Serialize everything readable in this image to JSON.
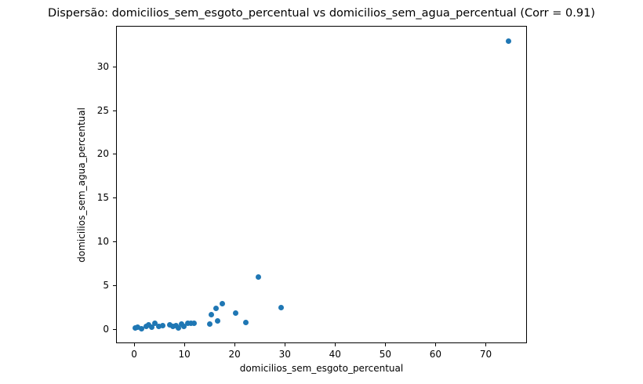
{
  "chart_data": {
    "type": "scatter",
    "title": "Dispersão: domicilios_sem_esgoto_percentual vs domicilios_sem_agua_percentual (Corr = 0.91)",
    "xlabel": "domicilios_sem_esgoto_percentual",
    "ylabel": "domicilios_sem_agua_percentual",
    "correlation": "0.91",
    "xlim": [
      -3.6,
      78.2
    ],
    "ylim": [
      -1.65,
      34.65
    ],
    "x_ticks": [
      0,
      10,
      20,
      30,
      40,
      50,
      60,
      70
    ],
    "y_ticks": [
      0,
      5,
      10,
      15,
      20,
      25,
      30
    ],
    "marker_color": "#1f77b4",
    "grid": false,
    "legend_position": "none",
    "points": [
      [
        0.1,
        0.2
      ],
      [
        0.5,
        0.3
      ],
      [
        1.3,
        0.1
      ],
      [
        2.2,
        0.35
      ],
      [
        2.8,
        0.55
      ],
      [
        3.4,
        0.3
      ],
      [
        4.0,
        0.7
      ],
      [
        4.7,
        0.35
      ],
      [
        5.5,
        0.45
      ],
      [
        6.9,
        0.55
      ],
      [
        7.6,
        0.4
      ],
      [
        8.2,
        0.5
      ],
      [
        8.6,
        0.15
      ],
      [
        9.3,
        0.6
      ],
      [
        9.7,
        0.35
      ],
      [
        10.5,
        0.75
      ],
      [
        11.2,
        0.7
      ],
      [
        11.7,
        0.7
      ],
      [
        14.9,
        0.65
      ],
      [
        15.2,
        1.7
      ],
      [
        16.2,
        2.4
      ],
      [
        16.4,
        0.95
      ],
      [
        17.4,
        3.0
      ],
      [
        20.0,
        1.9
      ],
      [
        22.1,
        0.8
      ],
      [
        24.5,
        6.0
      ],
      [
        29.1,
        2.55
      ],
      [
        74.4,
        33.0
      ]
    ]
  }
}
